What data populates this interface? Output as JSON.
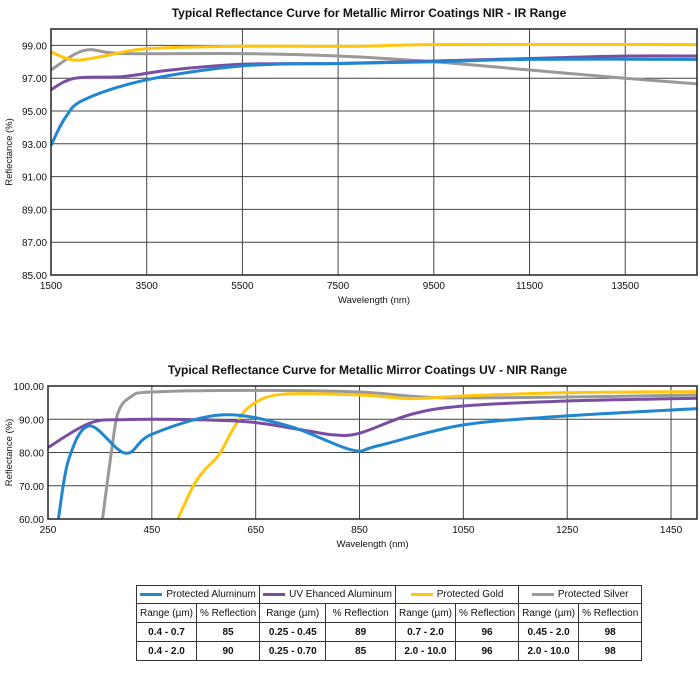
{
  "colors": {
    "aluminum": "#1f86cf",
    "uv_aluminum": "#7b4da0",
    "gold": "#ffc60b",
    "silver": "#999999"
  },
  "chart_data": [
    {
      "type": "line",
      "title": "Typical Reflectance Curve for Metallic Mirror Coatings NIR - IR Range",
      "xlabel": "Wavelength (nm)",
      "ylabel": "Reflectance (%)",
      "xlim": [
        1500,
        15000
      ],
      "ylim": [
        85,
        100
      ],
      "xticks": [
        "1500",
        "3500",
        "5500",
        "7500",
        "9500",
        "11500",
        "13500"
      ],
      "xtick_values": [
        1500,
        3500,
        5500,
        7500,
        9500,
        11500,
        13500
      ],
      "yticks": [
        "85.00",
        "87.00",
        "89.00",
        "91.00",
        "93.00",
        "95.00",
        "97.00",
        "99.00"
      ],
      "ytick_values": [
        85,
        87,
        89,
        91,
        93,
        95,
        97,
        99
      ],
      "grid": true,
      "series": [
        {
          "name": "Protected Silver",
          "color": "#999999",
          "points": [
            [
              1500,
              97.5
            ],
            [
              2200,
              98.7
            ],
            [
              3000,
              98.5
            ],
            [
              5500,
              98.5
            ],
            [
              7500,
              98.35
            ],
            [
              9500,
              98.0
            ],
            [
              11500,
              97.5
            ],
            [
              13500,
              97.0
            ],
            [
              15000,
              96.65
            ]
          ]
        },
        {
          "name": "Protected Gold",
          "color": "#ffc60b",
          "points": [
            [
              1500,
              98.6
            ],
            [
              2000,
              98.1
            ],
            [
              2700,
              98.4
            ],
            [
              3500,
              98.8
            ],
            [
              5500,
              98.95
            ],
            [
              8000,
              98.95
            ],
            [
              9500,
              99.05
            ],
            [
              15000,
              99.05
            ]
          ]
        },
        {
          "name": "UV Ehanced Aluminum",
          "color": "#7b4da0",
          "points": [
            [
              1500,
              96.3
            ],
            [
              2000,
              97.0
            ],
            [
              3000,
              97.1
            ],
            [
              4000,
              97.5
            ],
            [
              5500,
              97.85
            ],
            [
              7500,
              97.9
            ],
            [
              9500,
              98.05
            ],
            [
              11500,
              98.2
            ],
            [
              13500,
              98.35
            ],
            [
              15000,
              98.35
            ]
          ]
        },
        {
          "name": "Protected Aluminum",
          "color": "#1f86cf",
          "points": [
            [
              1500,
              92.9
            ],
            [
              1800,
              94.6
            ],
            [
              2200,
              95.7
            ],
            [
              3500,
              96.9
            ],
            [
              5500,
              97.75
            ],
            [
              7500,
              97.9
            ],
            [
              9500,
              98.0
            ],
            [
              11500,
              98.15
            ],
            [
              15000,
              98.15
            ]
          ]
        }
      ]
    },
    {
      "type": "line",
      "title": "Typical Reflectance Curve for Metallic Mirror Coatings UV - NIR Range",
      "xlabel": "Wavelength (nm)",
      "ylabel": "Reflectance (%)",
      "xlim": [
        250,
        1500
      ],
      "ylim": [
        60,
        100
      ],
      "xticks": [
        "250",
        "450",
        "650",
        "850",
        "1050",
        "1250",
        "1450"
      ],
      "xtick_values": [
        250,
        450,
        650,
        850,
        1050,
        1250,
        1450
      ],
      "yticks": [
        "60.00",
        "70.00",
        "80.00",
        "90.00",
        "100.00"
      ],
      "ytick_values": [
        60,
        70,
        80,
        90,
        100
      ],
      "grid": true,
      "series": [
        {
          "name": "Protected Silver",
          "color": "#999999",
          "points": [
            [
              355,
              60
            ],
            [
              372,
              80
            ],
            [
              385,
              92
            ],
            [
              410,
              96.8
            ],
            [
              450,
              98.2
            ],
            [
              650,
              98.7
            ],
            [
              850,
              98.2
            ],
            [
              1000,
              96.5
            ],
            [
              1250,
              96.7
            ],
            [
              1500,
              97.3
            ]
          ]
        },
        {
          "name": "Protected Gold",
          "color": "#ffc60b",
          "points": [
            [
              500,
              60
            ],
            [
              530,
              70
            ],
            [
              552,
              74.8
            ],
            [
              580,
              79.5
            ],
            [
              610,
              88
            ],
            [
              640,
              94
            ],
            [
              700,
              97.5
            ],
            [
              850,
              97.3
            ],
            [
              950,
              96.2
            ],
            [
              1050,
              97
            ],
            [
              1250,
              98
            ],
            [
              1500,
              98.3
            ]
          ]
        },
        {
          "name": "UV Ehanced Aluminum",
          "color": "#7b4da0",
          "points": [
            [
              250,
              81.5
            ],
            [
              330,
              88.8
            ],
            [
              400,
              89.9
            ],
            [
              550,
              89.8
            ],
            [
              650,
              89
            ],
            [
              750,
              86.5
            ],
            [
              800,
              85.3
            ],
            [
              850,
              85.8
            ],
            [
              950,
              91.5
            ],
            [
              1050,
              94
            ],
            [
              1250,
              95.5
            ],
            [
              1500,
              96.3
            ]
          ]
        },
        {
          "name": "Protected Aluminum",
          "color": "#1f86cf",
          "points": [
            [
              270,
              60
            ],
            [
              290,
              78
            ],
            [
              330,
              88
            ],
            [
              399,
              79.8
            ],
            [
              450,
              85.5
            ],
            [
              584,
              91.3
            ],
            [
              713,
              88
            ],
            [
              834,
              80.8
            ],
            [
              885,
              82
            ],
            [
              1050,
              88.3
            ],
            [
              1250,
              91
            ],
            [
              1500,
              93.2
            ]
          ]
        }
      ]
    }
  ],
  "table": {
    "groups": [
      {
        "name": "Protected Aluminum",
        "color": "#1f86cf"
      },
      {
        "name": "UV Ehanced Aluminum",
        "color": "#7b4da0"
      },
      {
        "name": "Protected Gold",
        "color": "#ffc60b"
      },
      {
        "name": "Protected Silver",
        "color": "#999999"
      }
    ],
    "col_range": "Range (µm)",
    "col_reflection": "% Reflection",
    "rows": [
      [
        "0.4 - 0.7",
        "85",
        "0.25 - 0.45",
        "89",
        "0.7 - 2.0",
        "96",
        "0.45 - 2.0",
        "98"
      ],
      [
        "0.4 - 2.0",
        "90",
        "0.25 - 0.70",
        "85",
        "2.0 - 10.0",
        "96",
        "2.0 - 10.0",
        "98"
      ]
    ]
  }
}
